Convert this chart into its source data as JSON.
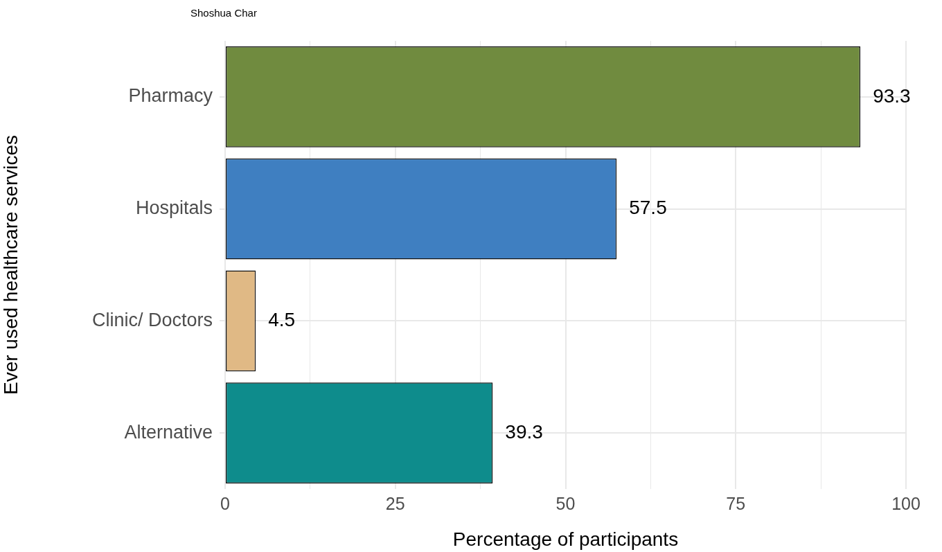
{
  "chart_data": {
    "type": "bar",
    "orientation": "horizontal",
    "title": "Shoshua Char",
    "xlabel": "Percentage of participants",
    "ylabel": "Ever used healthcare services",
    "categories": [
      "Pharmacy",
      "Hospitals",
      "Clinic/ Doctors",
      "Alternative"
    ],
    "values": [
      93.3,
      57.5,
      4.5,
      39.3
    ],
    "colors": [
      "#708b3f",
      "#3f7fc1",
      "#e0b985",
      "#0e8c8c"
    ],
    "xlim": [
      0,
      100
    ],
    "xticks": [
      0,
      {
        "value": 12.5,
        "label": null
      },
      25,
      {
        "value": 37.5,
        "label": null
      },
      50,
      {
        "value": 62.5,
        "label": null
      },
      75,
      {
        "value": 87.5,
        "label": null
      },
      100
    ],
    "grid": true,
    "data_labels": true,
    "legend": false
  }
}
